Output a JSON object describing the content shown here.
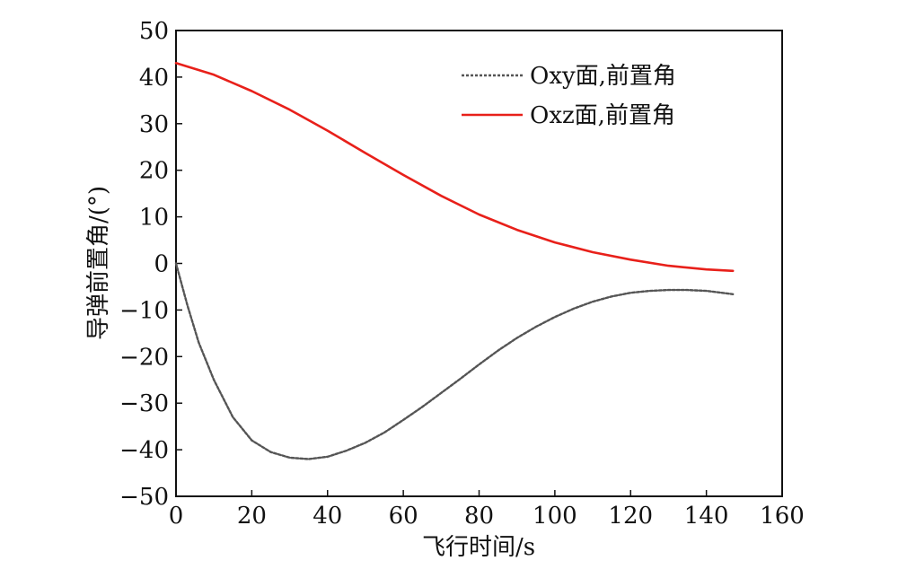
{
  "chart_data": {
    "type": "line",
    "xlabel": "飞行时间/s",
    "ylabel": "导弹前置角/(°)",
    "xlim": [
      0,
      160
    ],
    "ylim": [
      -50,
      50
    ],
    "xticks": [
      0,
      20,
      40,
      60,
      80,
      100,
      120,
      140,
      160
    ],
    "yticks": [
      50,
      40,
      30,
      20,
      10,
      0,
      -10,
      -20,
      -30,
      -40,
      -50
    ],
    "grid": false,
    "legend_position": "top-right",
    "series": [
      {
        "name": "Oxy面,前置角",
        "style": "dashed",
        "color": "#555555",
        "x": [
          0,
          3,
          6,
          10,
          15,
          20,
          25,
          30,
          35,
          40,
          45,
          50,
          55,
          60,
          65,
          70,
          75,
          80,
          85,
          90,
          95,
          100,
          105,
          110,
          115,
          120,
          125,
          130,
          135,
          140,
          145,
          147
        ],
        "y": [
          0,
          -9,
          -17,
          -25,
          -33,
          -38,
          -40.5,
          -41.7,
          -42,
          -41.5,
          -40.2,
          -38.5,
          -36.3,
          -33.6,
          -30.8,
          -27.8,
          -24.8,
          -21.7,
          -18.7,
          -16,
          -13.6,
          -11.5,
          -9.7,
          -8.2,
          -7.1,
          -6.3,
          -5.9,
          -5.7,
          -5.7,
          -5.9,
          -6.4,
          -6.6
        ]
      },
      {
        "name": "Oxz面,前置角",
        "style": "solid",
        "color": "#e8201a",
        "x": [
          0,
          10,
          20,
          30,
          40,
          50,
          60,
          70,
          80,
          90,
          100,
          110,
          120,
          130,
          140,
          147
        ],
        "y": [
          43,
          40.5,
          37,
          33,
          28.5,
          23.7,
          19,
          14.5,
          10.5,
          7.2,
          4.5,
          2.4,
          0.8,
          -0.5,
          -1.3,
          -1.6
        ]
      }
    ]
  }
}
